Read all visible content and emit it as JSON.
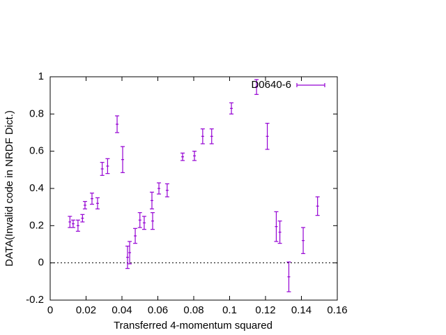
{
  "chart_data": {
    "type": "errorbar",
    "x_label": "Transferred 4-momentum squared",
    "y_label": "DATA(Invalid code in NRDF Dict.)",
    "xlim": [
      0,
      0.16
    ],
    "ylim": [
      -0.2,
      1
    ],
    "xticks": [
      0,
      0.02,
      0.04,
      0.06,
      0.08,
      0.1,
      0.12,
      0.14,
      0.16
    ],
    "yticks": [
      -0.2,
      0,
      0.2,
      0.4,
      0.6,
      0.8,
      1
    ],
    "zero_line": true,
    "legend": "top-right",
    "series": [
      {
        "name": "D0640-6",
        "color": "#9400d3",
        "x": [
          0.011,
          0.0128,
          0.0155,
          0.018,
          0.0194,
          0.0233,
          0.0264,
          0.029,
          0.032,
          0.0373,
          0.0404,
          0.0431,
          0.0443,
          0.0474,
          0.05,
          0.0524,
          0.0567,
          0.0571,
          0.0606,
          0.0652,
          0.0738,
          0.0804,
          0.085,
          0.09,
          0.101,
          0.115,
          0.121,
          0.126,
          0.128,
          0.133,
          0.141,
          0.149
        ],
        "values": [
          0.22,
          0.21,
          0.2,
          0.24,
          0.31,
          0.345,
          0.32,
          0.505,
          0.52,
          0.745,
          0.555,
          0.03,
          0.055,
          0.145,
          0.23,
          0.215,
          0.335,
          0.225,
          0.4,
          0.39,
          0.57,
          0.575,
          0.68,
          0.68,
          0.83,
          0.945,
          0.68,
          0.195,
          0.165,
          -0.075,
          0.12,
          0.305
        ],
        "errors": [
          0.03,
          0.02,
          0.03,
          0.02,
          0.02,
          0.03,
          0.03,
          0.035,
          0.04,
          0.045,
          0.07,
          0.06,
          0.06,
          0.04,
          0.04,
          0.035,
          0.045,
          0.045,
          0.03,
          0.035,
          0.02,
          0.025,
          0.04,
          0.04,
          0.03,
          0.04,
          0.07,
          0.08,
          0.06,
          0.08,
          0.07,
          0.05
        ]
      }
    ]
  }
}
